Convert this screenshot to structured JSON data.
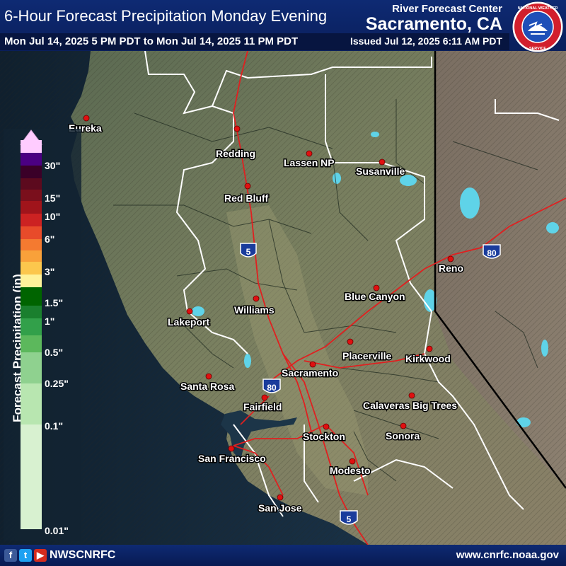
{
  "header": {
    "title": "6-Hour Forecast Precipitation Monday Evening",
    "rfc_name": "River Forecast Center",
    "rfc_city": "Sacramento, CA",
    "valid_period": "Mon Jul 14, 2025 5 PM PDT to Mon Jul 14, 2025 11 PM PDT",
    "issued": "Issued Jul 12, 2025 6:11 AM PDT",
    "logo_text": "NATIONAL WEATHER SERVICE"
  },
  "legend": {
    "title": "Forecast Precipitation (in)",
    "tick_labels": [
      "30\"",
      "15\"",
      "10\"",
      "6\"",
      "3\"",
      "1.5\"",
      "1\"",
      "0.5\"",
      "0.25\"",
      "0.1\"",
      "0.01\""
    ],
    "colors": [
      "#ffccff",
      "#4b0082",
      "#3a0028",
      "#5c0a1e",
      "#7a0f1c",
      "#a0141b",
      "#cc2222",
      "#e84b2a",
      "#f47a30",
      "#f9a13a",
      "#fcc74d",
      "#fff29a",
      "#006400",
      "#1a7f2e",
      "#32a04a",
      "#5cb85c",
      "#8fd18f",
      "#b8e6b0",
      "#d8f1d0"
    ]
  },
  "cities": [
    "Eureka",
    "Redding",
    "Lassen NP",
    "Susanville",
    "Red Bluff",
    "Reno",
    "Blue Canyon",
    "Williams",
    "Lakeport",
    "Placerville",
    "Kirkwood",
    "Sacramento",
    "Santa Rosa",
    "Fairfield",
    "Calaveras Big Trees",
    "Stockton",
    "Sonora",
    "San Francisco",
    "Modesto",
    "San Jose"
  ],
  "highways": [
    "5",
    "80",
    "80",
    "5"
  ],
  "footer": {
    "social_icons": [
      "facebook-icon",
      "twitter-icon",
      "youtube-icon"
    ],
    "handle": "NWSCNRFC",
    "website": "www.cnrfc.noaa.gov"
  }
}
